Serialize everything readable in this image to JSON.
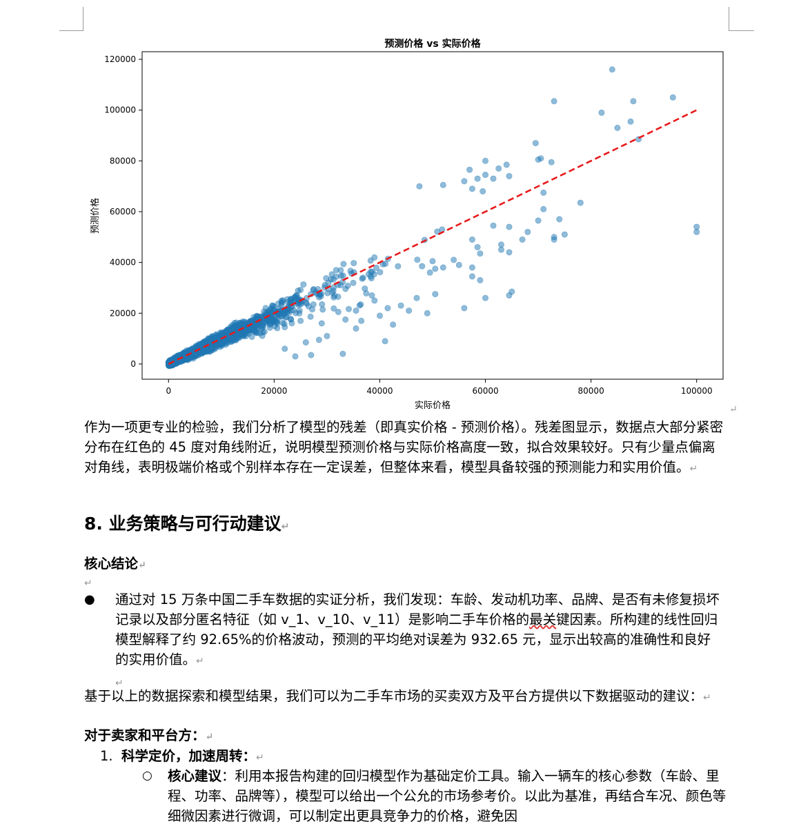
{
  "chart_data": {
    "type": "scatter",
    "title": "预测价格 vs 实际价格",
    "xlabel": "实际价格",
    "ylabel": "预测价格",
    "xlim": [
      -5000,
      105000
    ],
    "ylim": [
      -6000,
      123000
    ],
    "xticks": [
      "0",
      "20000",
      "40000",
      "60000",
      "80000",
      "100000"
    ],
    "yticks": [
      "0",
      "20000",
      "40000",
      "60000",
      "80000",
      "100000",
      "120000"
    ],
    "grid": false,
    "series": [
      {
        "color": "#1f77b4",
        "outliers": [
          [
            84000,
            116000
          ],
          [
            95500,
            105000
          ],
          [
            73000,
            103500
          ],
          [
            88000,
            103500
          ],
          [
            82000,
            99000
          ],
          [
            87500,
            95500
          ],
          [
            85000,
            93000
          ],
          [
            89000,
            88500
          ],
          [
            69500,
            87000
          ],
          [
            70000,
            80500
          ],
          [
            70500,
            81000
          ],
          [
            72500,
            79500
          ],
          [
            60000,
            80000
          ],
          [
            64000,
            78500
          ],
          [
            62500,
            77000
          ],
          [
            57000,
            76500
          ],
          [
            60000,
            74500
          ],
          [
            58500,
            73000
          ],
          [
            61500,
            73000
          ],
          [
            56000,
            72000
          ],
          [
            71000,
            67500
          ],
          [
            64500,
            74000
          ],
          [
            52000,
            70500
          ],
          [
            47500,
            70000
          ],
          [
            57500,
            69000
          ],
          [
            59500,
            68000
          ],
          [
            71000,
            61000
          ],
          [
            70000,
            56500
          ],
          [
            74000,
            57000
          ],
          [
            78000,
            63500
          ],
          [
            61500,
            54500
          ],
          [
            64500,
            54000
          ],
          [
            68000,
            52000
          ],
          [
            75000,
            51000
          ],
          [
            73000,
            50000
          ],
          [
            73000,
            49000
          ],
          [
            67000,
            49000
          ],
          [
            63000,
            47000
          ],
          [
            57500,
            49000
          ],
          [
            58500,
            46000
          ],
          [
            63000,
            45000
          ],
          [
            64500,
            44000
          ],
          [
            59000,
            43500
          ],
          [
            54000,
            41000
          ],
          [
            52000,
            38000
          ],
          [
            57500,
            38000
          ],
          [
            55000,
            39000
          ],
          [
            50000,
            40500
          ],
          [
            50500,
            37500
          ],
          [
            57500,
            34500
          ],
          [
            59000,
            33000
          ],
          [
            48000,
            38500
          ],
          [
            49500,
            36000
          ],
          [
            64500,
            27000
          ],
          [
            65000,
            28500
          ],
          [
            60000,
            26000
          ],
          [
            50500,
            27500
          ],
          [
            56000,
            22000
          ],
          [
            45500,
            21000
          ],
          [
            49000,
            20000
          ],
          [
            41500,
            22000
          ],
          [
            42500,
            15500
          ],
          [
            40000,
            19000
          ],
          [
            36500,
            17000
          ],
          [
            33500,
            17500
          ],
          [
            35500,
            21000
          ],
          [
            39000,
            25000
          ],
          [
            44000,
            23000
          ],
          [
            47000,
            26000
          ],
          [
            38500,
            27000
          ],
          [
            41000,
            9000
          ],
          [
            33000,
            4000
          ],
          [
            35500,
            14000
          ],
          [
            30000,
            11000
          ],
          [
            28500,
            9500
          ],
          [
            26000,
            8500
          ],
          [
            27000,
            3500
          ],
          [
            24000,
            3000
          ],
          [
            22000,
            6000
          ],
          [
            100000,
            54000
          ],
          [
            100000,
            52000
          ],
          [
            25000,
            17000
          ],
          [
            22000,
            14500
          ],
          [
            29000,
            16000
          ]
        ]
      }
    ],
    "reference_line": {
      "from": [
        0,
        0
      ],
      "to": [
        100000,
        100000
      ],
      "color": "#e8191a",
      "style": "dashed"
    }
  },
  "text": {
    "para1": "作为一项更专业的检验，我们分析了模型的残差（即真实价格 - 预测价格）。残差图显示，数据点大部分紧密分布在红色的 45 度对角线附近，说明模型预测价格与实际价格高度一致，拟合效果较好。只有少量点偏离对角线，表明极端价格或个别样本存在一定误差，但整体来看，模型具备较强的预测能力和实用价值。",
    "heading": "8. 业务策略与可行动建议",
    "core_conclusion": "核心结论",
    "bullet1_a": "通过对 15 万条中国二手车数据的实证分析，我们发现：车龄、发动机功率、品牌、是否有未修复损坏记录以及部分匿名特征（如 v_1、v_10、v_11）是影响二手车价格的",
    "bullet1_err": "最关",
    "bullet1_b": "键因素。所构建的线性回归模型解释了约 92.65%的价格波动，预测的平均绝对误差为 932.65 元，显示出较高的准确性和良好的实用价值。",
    "para2": "基于以上的数据探索和模型结果，我们可以为二手车市场的买卖双方及平台方提供以下数据驱动的建议：",
    "sellers": "对于卖家和平台方：",
    "item1_num": "1.",
    "item1": "科学定价，加速周转：",
    "sub1_label": "核心建议",
    "sub1_text": "：利用本报告构建的回归模型作为基础定价工具。输入一辆车的核心参数（车龄、里程、功率、品牌等），模型可以给出一个公允的市场参考价。以此为基准，再结合车况、颜色等细微因素进行微调，可以制定出更具竞争力的价格，避免因",
    "return_mark": "↵",
    "bullet_symbol": "●",
    "circle_symbol": "○"
  }
}
